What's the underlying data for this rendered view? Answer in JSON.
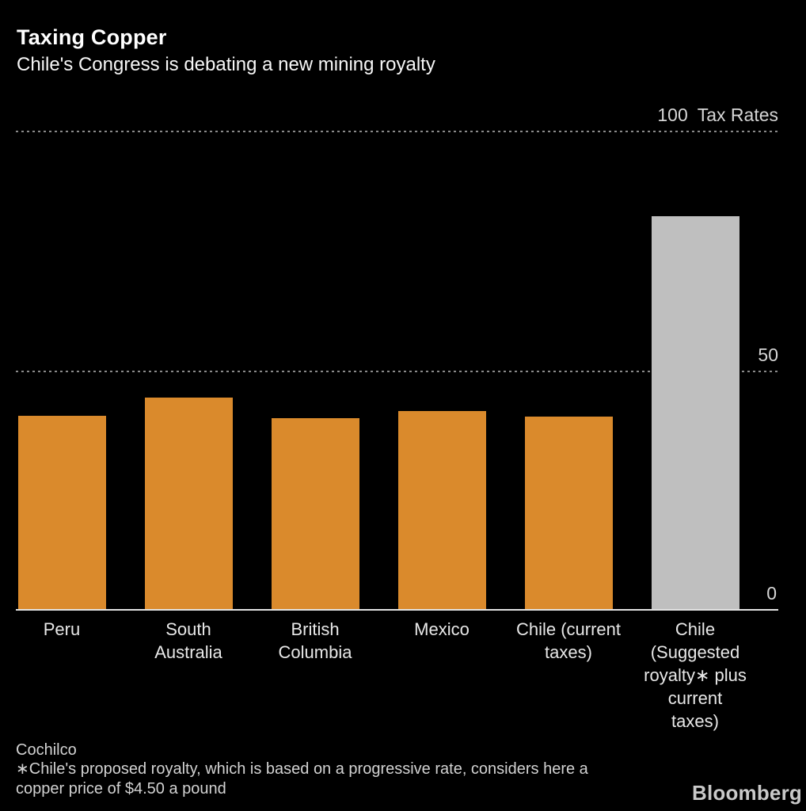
{
  "header": {
    "title": "Taxing Copper",
    "subtitle": "Chile's Congress is debating a new mining royalty"
  },
  "yaxis": {
    "title": "Tax Rates",
    "tick_labels": [
      "0",
      "50",
      "100"
    ]
  },
  "chart_data": {
    "type": "bar",
    "title": "Taxing Copper",
    "subtitle": "Chile's Congress is debating a new mining royalty",
    "categories": [
      "Peru",
      "South Australia",
      "British Columbia",
      "Mexico",
      "Chile (current taxes)",
      "Chile (Suggested royalty∗ plus current taxes)"
    ],
    "categories_wrapped": [
      "Peru",
      "South\nAustralia",
      "British\nColumbia",
      "Mexico",
      "Chile (current\ntaxes)",
      "Chile\n(Suggested\nroyalty∗ plus\ncurrent\ntaxes)"
    ],
    "values": [
      40.5,
      44.3,
      40.1,
      41.6,
      40.3,
      82.4
    ],
    "bar_colors": [
      "#DA8A2C",
      "#DA8A2C",
      "#DA8A2C",
      "#DA8A2C",
      "#DA8A2C",
      "#BFBFBF"
    ],
    "xlabel": "",
    "ylabel": "Tax Rates",
    "ylim": [
      0,
      100
    ],
    "yticks": [
      0,
      50,
      100
    ],
    "grid": "horizontal-dotted",
    "legend": "none"
  },
  "footer": {
    "source": "Cochilco",
    "footnote_lines": [
      "∗Chile's proposed royalty, which is based on a progressive rate, considers here a",
      "copper price of $4.50 a pound"
    ],
    "logo": "Bloomberg"
  },
  "colors": {
    "background": "#000000",
    "bar_orange": "#DA8A2C",
    "bar_highlight_gray": "#BFBFBF",
    "gridline": "#8A8A8A",
    "baseline": "#E2E2E2",
    "tick_label": "#D6D6D6",
    "category_label": "#E8E8E8",
    "footnote_text": "#D2D2D2",
    "title_text": "#FFFFFF"
  }
}
